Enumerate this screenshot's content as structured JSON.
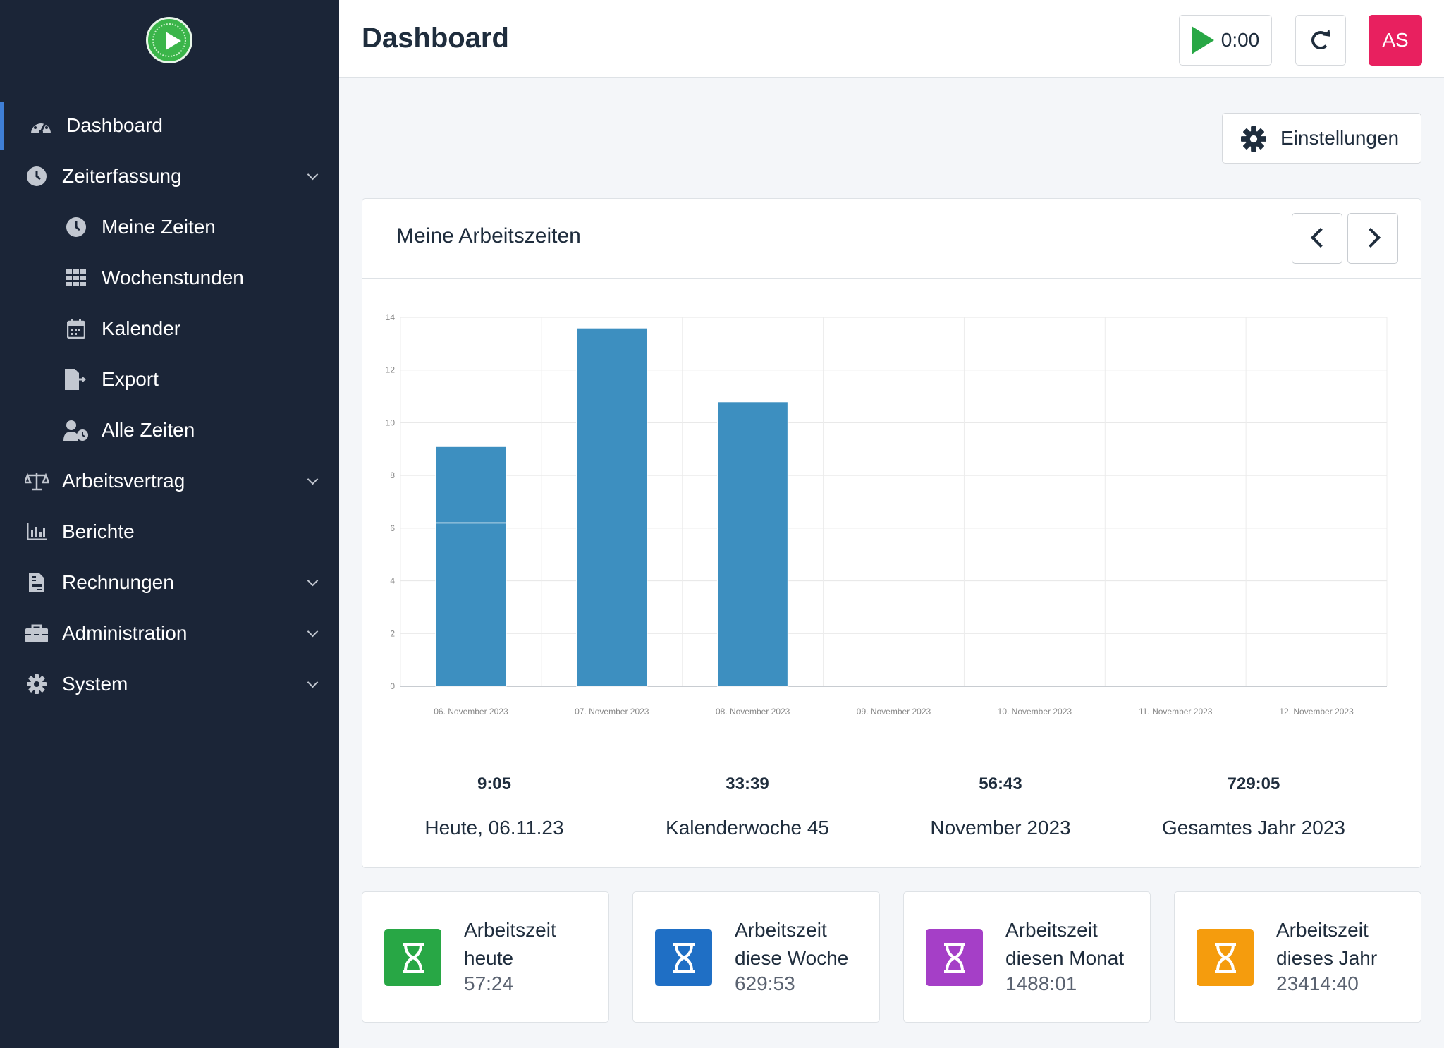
{
  "sidebar": {
    "items": [
      {
        "label": "Dashboard",
        "icon": "tachometer-icon"
      },
      {
        "label": "Zeiterfassung",
        "icon": "clock-icon"
      },
      {
        "label": "Meine Zeiten",
        "icon": "clock-icon"
      },
      {
        "label": "Wochenstunden",
        "icon": "grid-icon"
      },
      {
        "label": "Kalender",
        "icon": "calendar-icon"
      },
      {
        "label": "Export",
        "icon": "file-export-icon"
      },
      {
        "label": "Alle Zeiten",
        "icon": "user-clock-icon"
      },
      {
        "label": "Arbeitsvertrag",
        "icon": "balance-scale-icon"
      },
      {
        "label": "Berichte",
        "icon": "bar-chart-icon"
      },
      {
        "label": "Rechnungen",
        "icon": "invoice-icon"
      },
      {
        "label": "Administration",
        "icon": "toolbox-icon"
      },
      {
        "label": "System",
        "icon": "cog-icon"
      }
    ]
  },
  "header": {
    "title": "Dashboard",
    "timer": "0:00",
    "avatar": "AS"
  },
  "settings": {
    "label": "Einstellungen"
  },
  "card": {
    "title": "Meine Arbeitszeiten"
  },
  "chart_data": {
    "type": "bar",
    "categories": [
      "06. November 2023",
      "07. November 2023",
      "08. November 2023",
      "09. November 2023",
      "10. November 2023",
      "11. November 2023",
      "12. November 2023"
    ],
    "series": [
      {
        "values": [
          6.2,
          13.6,
          10.8,
          0,
          0,
          0,
          0
        ]
      },
      {
        "values": [
          2.9,
          0,
          0,
          0,
          0,
          0,
          0
        ]
      }
    ],
    "stacked": true,
    "ylim": [
      0,
      14
    ],
    "yticks": [
      0,
      2,
      4,
      6,
      8,
      10,
      12,
      14
    ],
    "color": "#3d8fc0",
    "grid": true,
    "legend": "none"
  },
  "stats": [
    {
      "value": "9:05",
      "label": "Heute, 06.11.23"
    },
    {
      "value": "33:39",
      "label": "Kalenderwoche 45"
    },
    {
      "value": "56:43",
      "label": "November 2023"
    },
    {
      "value": "729:05",
      "label": "Gesamtes Jahr 2023"
    }
  ],
  "infoboxes": [
    {
      "line1": "Arbeitszeit",
      "line2": "heute",
      "value": "57:24",
      "color": "#28a745"
    },
    {
      "line1": "Arbeitszeit",
      "line2": "diese Woche",
      "value": "629:53",
      "color": "#1f6fc5"
    },
    {
      "line1": "Arbeitszeit",
      "line2": "diesen Monat",
      "value": "1488:01",
      "color": "#a53fc7"
    },
    {
      "line1": "Arbeitszeit",
      "line2": "dieses Jahr",
      "value": "23414:40",
      "color": "#f59c0d"
    }
  ]
}
